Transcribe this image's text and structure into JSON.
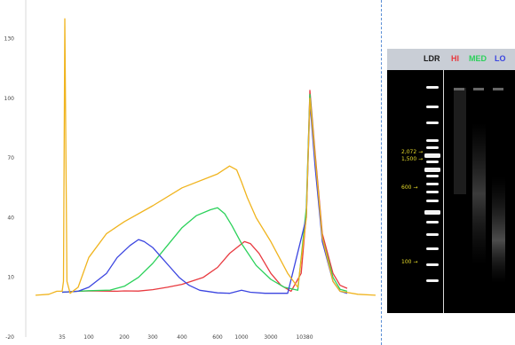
{
  "chart_data": {
    "type": "line",
    "x_tick_labels": [
      "35",
      "100",
      "200",
      "300",
      "400",
      "600",
      "1000",
      "3000",
      "10380"
    ],
    "y_tick_labels": [
      "130",
      "100",
      "70",
      "40",
      "10",
      "-20"
    ],
    "ylim": [
      -20,
      145
    ],
    "series": [
      {
        "name": "HI",
        "color": "#e8393f",
        "points": [
          [
            0,
            2.5
          ],
          [
            0.6,
            3
          ],
          [
            1,
            3.2
          ],
          [
            1.8,
            3
          ],
          [
            2,
            3.2
          ],
          [
            2.5,
            3.1
          ],
          [
            3,
            3.8
          ],
          [
            3.5,
            5
          ],
          [
            4,
            6.5
          ],
          [
            4.6,
            10
          ],
          [
            5,
            15
          ],
          [
            5.5,
            22
          ],
          [
            6.1,
            28
          ],
          [
            6.3,
            27
          ],
          [
            6.6,
            22
          ],
          [
            7,
            12
          ],
          [
            7.3,
            6
          ],
          [
            7.6,
            3
          ],
          [
            7.9,
            12
          ],
          [
            8.05,
            42
          ],
          [
            8.15,
            104
          ],
          [
            8.3,
            72
          ],
          [
            8.5,
            32
          ],
          [
            8.8,
            12
          ],
          [
            9,
            6
          ],
          [
            9.2,
            4.5
          ]
        ]
      },
      {
        "name": "MED",
        "color": "#2bd15a",
        "points": [
          [
            0,
            2.5
          ],
          [
            0.6,
            3
          ],
          [
            1,
            3.3
          ],
          [
            1.6,
            3.6
          ],
          [
            2,
            5.5
          ],
          [
            2.5,
            10
          ],
          [
            3,
            17
          ],
          [
            3.5,
            26
          ],
          [
            4,
            35
          ],
          [
            4.4,
            41
          ],
          [
            4.8,
            44
          ],
          [
            5,
            45
          ],
          [
            5.3,
            42
          ],
          [
            5.6,
            36
          ],
          [
            6,
            27
          ],
          [
            6.5,
            16
          ],
          [
            7,
            9
          ],
          [
            7.4,
            5
          ],
          [
            7.8,
            3.5
          ],
          [
            8.05,
            45
          ],
          [
            8.15,
            102
          ],
          [
            8.3,
            70
          ],
          [
            8.5,
            30
          ],
          [
            8.8,
            10
          ],
          [
            9,
            4
          ],
          [
            9.2,
            3
          ]
        ]
      },
      {
        "name": "LO",
        "color": "#3b45e0",
        "points": [
          [
            0,
            2.5
          ],
          [
            0.6,
            3
          ],
          [
            1,
            5
          ],
          [
            1.5,
            12
          ],
          [
            1.8,
            20
          ],
          [
            2.2,
            26
          ],
          [
            2.5,
            29
          ],
          [
            2.7,
            28
          ],
          [
            3,
            25
          ],
          [
            3.3,
            20
          ],
          [
            3.6,
            15
          ],
          [
            3.9,
            10
          ],
          [
            4.2,
            6
          ],
          [
            4.5,
            3.5
          ],
          [
            5,
            2.2
          ],
          [
            5.5,
            2
          ],
          [
            6,
            3.5
          ],
          [
            6.3,
            2.5
          ],
          [
            6.8,
            2
          ],
          [
            7.5,
            2
          ],
          [
            8.05,
            40
          ],
          [
            8.15,
            98
          ],
          [
            8.3,
            65
          ],
          [
            8.5,
            28
          ],
          [
            8.8,
            8
          ],
          [
            9,
            3
          ],
          [
            9.2,
            2
          ]
        ]
      },
      {
        "name": "",
        "color": "#f0b41e",
        "points": [
          [
            -1,
            1
          ],
          [
            -0.5,
            1.5
          ],
          [
            -0.2,
            3
          ],
          [
            0,
            3
          ],
          [
            0.05,
            8
          ],
          [
            0.1,
            140
          ],
          [
            0.18,
            8
          ],
          [
            0.3,
            2
          ],
          [
            0.6,
            5
          ],
          [
            1,
            20
          ],
          [
            1.5,
            32
          ],
          [
            2,
            38
          ],
          [
            3,
            46
          ],
          [
            4,
            55
          ],
          [
            5,
            62
          ],
          [
            5.5,
            66
          ],
          [
            5.8,
            64
          ],
          [
            6,
            58
          ],
          [
            6.2,
            50
          ],
          [
            6.5,
            40
          ],
          [
            7,
            28
          ],
          [
            7.5,
            12
          ],
          [
            7.8,
            5
          ],
          [
            8.05,
            40
          ],
          [
            8.15,
            100
          ],
          [
            8.3,
            70
          ],
          [
            8.5,
            30
          ],
          [
            8.8,
            8
          ],
          [
            9,
            3
          ],
          [
            9.5,
            1.5
          ],
          [
            10,
            1
          ]
        ]
      }
    ]
  },
  "gel": {
    "lanes": [
      "LDR",
      "HI",
      "MED",
      "LO"
    ],
    "lane_colors": [
      "#1a1a1a",
      "#e8393f",
      "#2bd15a",
      "#3b45e0"
    ],
    "ladder_labels": [
      "2,072",
      "1,500",
      "600",
      "100"
    ],
    "ladder_label_color": "#e7dc2a"
  }
}
